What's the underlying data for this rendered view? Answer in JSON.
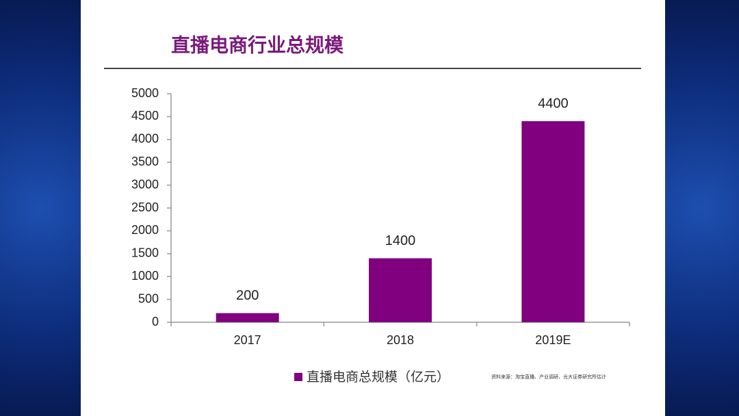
{
  "chart_data": {
    "type": "bar",
    "title": "直播电商行业总规模",
    "categories": [
      "2017",
      "2018",
      "2019E"
    ],
    "series": [
      {
        "name": "直播电商总规模（亿元）",
        "color": "#800080",
        "values": [
          200,
          1400,
          4400
        ]
      }
    ],
    "ylim": [
      0,
      5000
    ],
    "yticks": [
      0,
      500,
      1000,
      1500,
      2000,
      2500,
      3000,
      3500,
      4000,
      4500,
      5000
    ],
    "grid": false,
    "source": "资料来源：淘宝直播、产业调研、光大证券研究所估计"
  }
}
